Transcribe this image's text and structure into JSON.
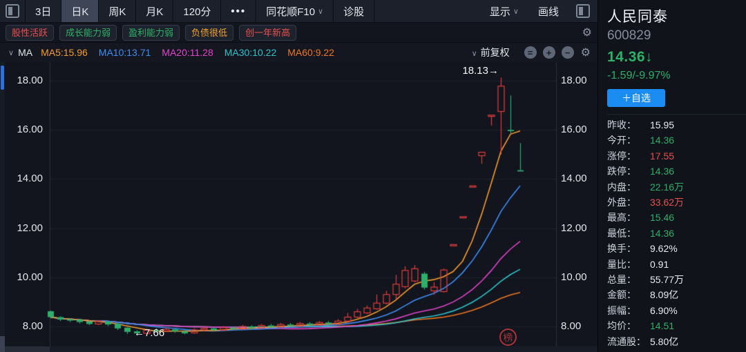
{
  "colors": {
    "red": "#e8514f",
    "green": "#2cb168",
    "orange_tag": "#f0a32f",
    "ma5": "#f79b2f",
    "ma10": "#3e8df5",
    "ma20": "#e243cb",
    "ma30": "#2cc3cd",
    "ma60": "#ee7621",
    "candle_red": "#e13c3c",
    "candle_green": "#2fae6b",
    "fav_blue": "#1b8df2"
  },
  "icons": {
    "chevron_down": "∨",
    "dots": "•••",
    "panel_toggle": "panel",
    "gear": "⚙",
    "circle_default": "=",
    "circle_plus": "+",
    "circle_minus": "−",
    "arrow_down": "↓",
    "arrow_right": "→",
    "arrow_left": "←"
  },
  "toolbar": {
    "tabs": [
      {
        "label": "3日",
        "active": false,
        "chevron": false
      },
      {
        "label": "日K",
        "active": true,
        "chevron": false
      },
      {
        "label": "周K",
        "active": false,
        "chevron": false
      },
      {
        "label": "月K",
        "active": false,
        "chevron": false
      },
      {
        "label": "120分",
        "active": false,
        "chevron": false
      },
      {
        "label": "•••",
        "active": false,
        "chevron": false,
        "dots": true
      },
      {
        "label": "同花顺F10",
        "active": false,
        "chevron": true
      },
      {
        "label": "诊股",
        "active": false,
        "chevron": false
      }
    ],
    "right_items": [
      {
        "label": "显示",
        "chevron": true
      },
      {
        "label": "画线",
        "chevron": false
      }
    ]
  },
  "tags": [
    {
      "label": "股性活跃",
      "color": "#e8514f"
    },
    {
      "label": "成长能力弱",
      "color": "#2cb168"
    },
    {
      "label": "盈利能力弱",
      "color": "#2cb168"
    },
    {
      "label": "负债很低",
      "color": "#f0a32f"
    },
    {
      "label": "创一年新高",
      "color": "#e8514f"
    }
  ],
  "ma_bar": {
    "title": "MA",
    "items": [
      {
        "label": "MA5:15.96",
        "color": "#f79b2f"
      },
      {
        "label": "MA10:13.71",
        "color": "#3e8df5"
      },
      {
        "label": "MA20:11.28",
        "color": "#e243cb"
      },
      {
        "label": "MA30:10.22",
        "color": "#2cc3cd"
      },
      {
        "label": "MA60:9.22",
        "color": "#ee7621"
      }
    ],
    "adjust_label": "前复权"
  },
  "quote_panel": {
    "name": "人民同泰",
    "code": "600829",
    "price": "14.36↓",
    "change": "-1.59/-9.97%",
    "fav_button": "＋自选",
    "stats": [
      {
        "label": "昨收：",
        "value": "15.95",
        "color": "white"
      },
      {
        "label": "今开：",
        "value": "14.36",
        "color": "green"
      },
      {
        "label": "涨停：",
        "value": "17.55",
        "color": "red"
      },
      {
        "label": "跌停：",
        "value": "14.36",
        "color": "green"
      },
      {
        "label": "内盘：",
        "value": "22.16万",
        "color": "green"
      },
      {
        "label": "外盘：",
        "value": "33.62万",
        "color": "red"
      },
      {
        "label": "最高：",
        "value": "15.46",
        "color": "green"
      },
      {
        "label": "最低：",
        "value": "14.36",
        "color": "green"
      },
      {
        "label": "换手：",
        "value": "9.62%",
        "color": "white"
      },
      {
        "label": "量比：",
        "value": "0.91",
        "color": "white"
      },
      {
        "label": "总量：",
        "value": "55.77万",
        "color": "white"
      },
      {
        "label": "金额：",
        "value": "8.09亿",
        "color": "white"
      },
      {
        "label": "振幅：",
        "value": "6.90%",
        "color": "white"
      },
      {
        "label": "均价：",
        "value": "14.51",
        "color": "green"
      },
      {
        "label": "流通股：",
        "value": "5.80亿",
        "color": "white"
      }
    ]
  },
  "chart_data": {
    "type": "candlestick",
    "title": "人民同泰 600829 日K 前复权",
    "ylim": [
      7.2,
      18.6
    ],
    "y_ticks": [
      "18.00",
      "16.00",
      "14.00",
      "12.00",
      "10.00",
      "8.00"
    ],
    "y_tick_values": [
      18,
      16,
      14,
      12,
      10,
      8
    ],
    "grid": true,
    "annotations": {
      "high": {
        "text": "18.13→",
        "value": 18.13
      },
      "low": {
        "text": "←7.66",
        "value": 7.66
      },
      "stamp": {
        "text": "榜"
      }
    },
    "ma_lines": [
      {
        "name": "MA60",
        "period": 60,
        "color": "#ee7621",
        "last": 9.22
      },
      {
        "name": "MA30",
        "period": 30,
        "color": "#2cc3cd",
        "last": 10.22
      },
      {
        "name": "MA20",
        "period": 20,
        "color": "#e243cb",
        "last": 11.28
      },
      {
        "name": "MA10",
        "period": 10,
        "color": "#3e8df5",
        "last": 13.71
      },
      {
        "name": "MA5",
        "period": 5,
        "color": "#f79b2f",
        "last": 15.96
      }
    ],
    "candles_format": [
      "open",
      "close",
      "high",
      "low"
    ],
    "candles": [
      [
        8.62,
        8.38,
        8.65,
        8.33
      ],
      [
        8.38,
        8.28,
        8.42,
        8.22
      ],
      [
        8.3,
        8.24,
        8.33,
        8.18
      ],
      [
        8.28,
        8.18,
        8.3,
        8.12
      ],
      [
        8.2,
        8.1,
        8.24,
        8.05
      ],
      [
        8.1,
        8.22,
        8.26,
        8.06
      ],
      [
        8.2,
        8.08,
        8.22,
        8.02
      ],
      [
        8.12,
        7.92,
        8.14,
        7.86
      ],
      [
        7.95,
        7.78,
        7.98,
        7.7
      ],
      [
        7.8,
        7.72,
        7.85,
        7.66
      ],
      [
        7.72,
        7.85,
        7.9,
        7.7
      ],
      [
        7.85,
        7.8,
        7.92,
        7.75
      ],
      [
        7.82,
        7.88,
        7.95,
        7.78
      ],
      [
        7.88,
        7.8,
        7.92,
        7.74
      ],
      [
        7.8,
        7.72,
        7.85,
        7.68
      ],
      [
        7.74,
        7.86,
        7.92,
        7.7
      ],
      [
        7.86,
        7.92,
        7.98,
        7.82
      ],
      [
        7.92,
        7.85,
        7.98,
        7.8
      ],
      [
        7.85,
        7.95,
        8.02,
        7.82
      ],
      [
        7.95,
        7.9,
        8.0,
        7.85
      ],
      [
        7.9,
        8.0,
        8.06,
        7.86
      ],
      [
        8.0,
        7.94,
        8.05,
        7.88
      ],
      [
        7.94,
        8.04,
        8.1,
        7.9
      ],
      [
        8.04,
        7.98,
        8.1,
        7.92
      ],
      [
        7.98,
        8.08,
        8.14,
        7.94
      ],
      [
        8.08,
        8.02,
        8.14,
        7.96
      ],
      [
        8.02,
        8.12,
        8.18,
        7.98
      ],
      [
        8.12,
        8.06,
        8.18,
        8.0
      ],
      [
        8.06,
        8.16,
        8.22,
        8.02
      ],
      [
        8.16,
        8.1,
        8.22,
        8.04
      ],
      [
        8.1,
        8.22,
        8.3,
        8.06
      ],
      [
        8.22,
        8.38,
        8.55,
        8.18
      ],
      [
        8.38,
        8.6,
        8.72,
        8.34
      ],
      [
        8.55,
        8.75,
        8.85,
        8.5
      ],
      [
        8.72,
        8.95,
        9.3,
        8.68
      ],
      [
        8.95,
        9.3,
        9.45,
        8.9
      ],
      [
        9.3,
        9.72,
        10.1,
        9.1
      ],
      [
        9.62,
        10.28,
        10.45,
        9.55
      ],
      [
        9.85,
        10.35,
        10.5,
        9.8
      ],
      [
        10.15,
        9.58,
        10.22,
        9.5
      ],
      [
        9.45,
        9.6,
        9.8,
        9.3
      ],
      [
        9.42,
        10.3,
        10.35,
        9.38
      ],
      [
        11.33,
        11.33,
        11.33,
        11.33
      ],
      [
        12.47,
        12.47,
        12.47,
        12.47
      ],
      [
        13.72,
        13.72,
        13.72,
        13.72
      ],
      [
        14.95,
        15.09,
        15.09,
        14.62
      ],
      [
        16.55,
        16.6,
        16.6,
        16.18
      ],
      [
        16.75,
        17.78,
        18.13,
        15.0
      ],
      [
        16.0,
        15.95,
        17.4,
        15.85
      ],
      [
        14.36,
        14.36,
        15.46,
        14.36
      ]
    ]
  }
}
